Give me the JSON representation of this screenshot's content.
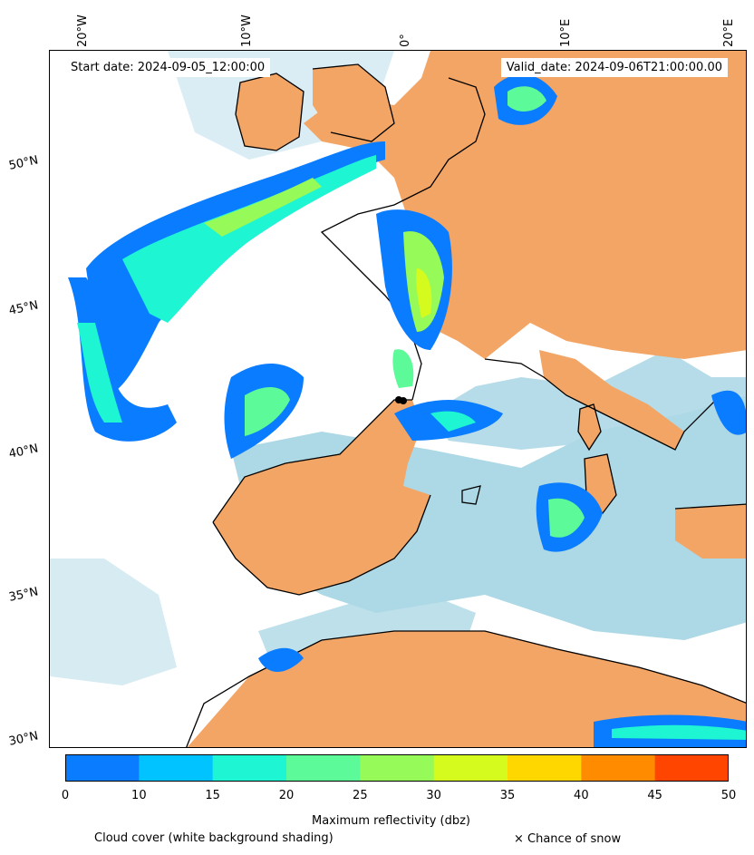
{
  "header": {
    "start_date": "Start date: 2024-09-05_12:00:00",
    "valid_date": "Valid_date: 2024-09-06T21:00:00.00"
  },
  "map": {
    "longitude_labels": [
      "20°W",
      "10°W",
      "0°",
      "10°E",
      "20°E"
    ],
    "latitude_labels": [
      "50°N",
      "45°N",
      "40°N",
      "35°N",
      "30°N"
    ],
    "colors": {
      "land": "#f2a565",
      "sea": "#add8e6",
      "cloud": "#ffffff",
      "coastline": "#000000",
      "snow_marker": "#000000"
    }
  },
  "colorbar": {
    "title": "Maximum reflectivity (dbz)",
    "ticks": [
      "0",
      "10",
      "15",
      "20",
      "25",
      "30",
      "35",
      "40",
      "45",
      "50"
    ],
    "colors": [
      "#0a7cff",
      "#00c3ff",
      "#1ef5d3",
      "#5cfa98",
      "#96fa58",
      "#d4fa1e",
      "#ffd700",
      "#ff8c00",
      "#ff4500"
    ]
  },
  "legend": {
    "cloud_note": "Cloud cover (white background shading)",
    "snow_note": "× Chance of snow"
  }
}
